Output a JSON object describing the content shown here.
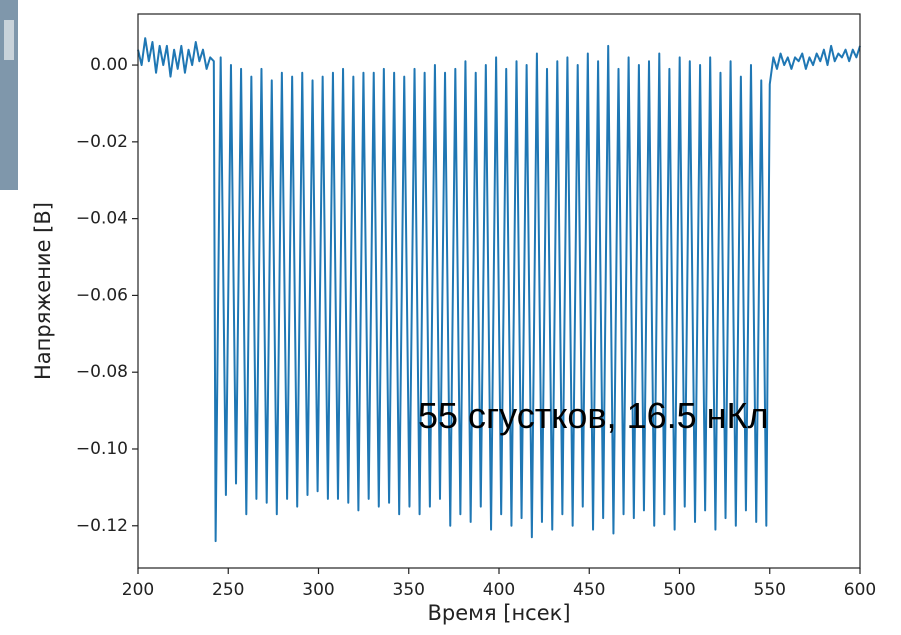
{
  "chart_data": {
    "type": "line",
    "xlabel": "Время [нсек]",
    "ylabel": "Напряжение [В]",
    "annotation": "55 сгустков, 16.5 нКл",
    "color": "#1f77b4",
    "xlim": [
      200,
      600
    ],
    "ylim": [
      -0.131,
      0.0133
    ],
    "xticks": [
      200,
      250,
      300,
      350,
      400,
      450,
      500,
      550,
      600
    ],
    "yticks": [
      {
        "value": -0.12,
        "label": "−0.12"
      },
      {
        "value": -0.1,
        "label": "−0.10"
      },
      {
        "value": -0.08,
        "label": "−0.08"
      },
      {
        "value": -0.06,
        "label": "−0.06"
      },
      {
        "value": -0.04,
        "label": "−0.04"
      },
      {
        "value": -0.02,
        "label": "−0.02"
      },
      {
        "value": 0.0,
        "label": "0.00"
      }
    ],
    "x": [
      200,
      202,
      204,
      206,
      208,
      210,
      212,
      214,
      216,
      218,
      220,
      222,
      224,
      226,
      228,
      230,
      232,
      234,
      236,
      238,
      240,
      242,
      243.0,
      245.8,
      248.7,
      251.5,
      254.3,
      257.1,
      260.0,
      262.8,
      265.6,
      268.4,
      271.3,
      274.1,
      276.9,
      279.7,
      282.6,
      285.4,
      288.2,
      291.0,
      293.9,
      296.7,
      299.5,
      302.3,
      305.2,
      308.0,
      310.8,
      313.6,
      316.5,
      319.3,
      322.1,
      324.9,
      327.8,
      330.6,
      333.4,
      336.2,
      339.1,
      341.9,
      344.7,
      347.5,
      350.4,
      353.2,
      356.0,
      358.8,
      361.7,
      364.5,
      367.3,
      370.1,
      373.0,
      375.8,
      378.6,
      381.4,
      384.3,
      387.1,
      389.9,
      392.7,
      395.6,
      398.4,
      401.2,
      404.0,
      406.9,
      409.7,
      412.5,
      415.3,
      418.2,
      421.0,
      423.8,
      426.6,
      429.5,
      432.3,
      435.1,
      437.9,
      440.8,
      443.6,
      446.4,
      449.2,
      452.1,
      454.9,
      457.7,
      460.5,
      463.4,
      466.2,
      469.0,
      471.8,
      474.7,
      477.5,
      480.3,
      483.1,
      486.0,
      488.8,
      491.6,
      494.4,
      497.3,
      500.1,
      502.9,
      505.7,
      508.6,
      511.4,
      514.2,
      517.0,
      519.9,
      522.7,
      525.5,
      528.3,
      531.2,
      534.0,
      536.8,
      539.6,
      542.5,
      545.3,
      548.1,
      550,
      552,
      554,
      556,
      558,
      560,
      562,
      564,
      566,
      568,
      570,
      572,
      574,
      576,
      578,
      580,
      582,
      584,
      586,
      588,
      590,
      592,
      594,
      596,
      598,
      600
    ],
    "values": [
      0.004,
      0.0,
      0.007,
      0.001,
      0.006,
      -0.002,
      0.005,
      0.0,
      0.005,
      -0.003,
      0.004,
      -0.001,
      0.005,
      -0.002,
      0.004,
      0.0,
      0.006,
      0.001,
      0.004,
      -0.001,
      0.002,
      0.001,
      -0.124,
      0.002,
      -0.112,
      0.0,
      -0.109,
      -0.001,
      -0.117,
      -0.003,
      -0.113,
      -0.001,
      -0.114,
      -0.004,
      -0.117,
      -0.002,
      -0.113,
      -0.003,
      -0.115,
      -0.002,
      -0.112,
      -0.004,
      -0.111,
      -0.003,
      -0.113,
      -0.002,
      -0.113,
      -0.001,
      -0.114,
      -0.003,
      -0.116,
      -0.002,
      -0.113,
      -0.002,
      -0.115,
      -0.001,
      -0.114,
      -0.002,
      -0.117,
      -0.003,
      -0.115,
      -0.001,
      -0.117,
      -0.002,
      -0.115,
      0.0,
      -0.113,
      -0.002,
      -0.12,
      -0.001,
      -0.117,
      0.001,
      -0.119,
      -0.002,
      -0.115,
      0.0,
      -0.121,
      0.002,
      -0.117,
      -0.001,
      -0.12,
      0.001,
      -0.118,
      0.0,
      -0.123,
      0.003,
      -0.119,
      -0.001,
      -0.121,
      0.001,
      -0.117,
      0.002,
      -0.12,
      0.0,
      -0.115,
      0.003,
      -0.121,
      0.001,
      -0.118,
      0.005,
      -0.122,
      -0.001,
      -0.117,
      0.002,
      -0.118,
      0.0,
      -0.116,
      0.001,
      -0.12,
      0.003,
      -0.117,
      -0.001,
      -0.121,
      0.002,
      -0.115,
      0.001,
      -0.119,
      0.0,
      -0.116,
      0.002,
      -0.121,
      -0.002,
      -0.118,
      0.001,
      -0.12,
      -0.003,
      -0.116,
      0.0,
      -0.119,
      -0.004,
      -0.12,
      -0.005,
      0.002,
      -0.001,
      0.003,
      0.0,
      0.002,
      -0.001,
      0.002,
      0.001,
      0.003,
      -0.001,
      0.002,
      0.0,
      0.003,
      0.001,
      0.004,
      0.0,
      0.005,
      0.001,
      0.003,
      0.002,
      0.004,
      0.001,
      0.004,
      0.002,
      0.005
    ]
  }
}
